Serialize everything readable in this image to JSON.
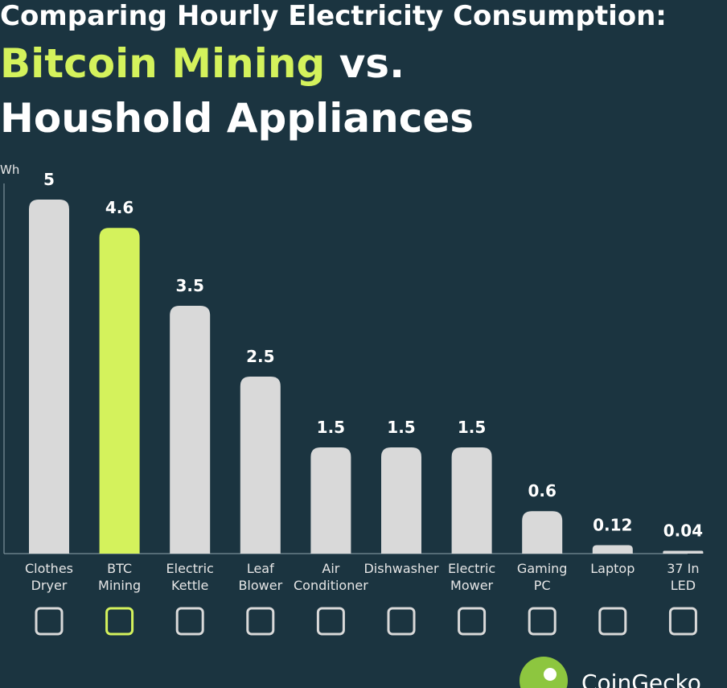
{
  "chart_data": {
    "type": "bar",
    "title": "Comparing Hourly Electricity Consumption:",
    "subtitle_highlight": "Bitcoin Mining",
    "subtitle_rest": "vs.",
    "subtitle_line2": "Houshold Appliances",
    "y_label": "Wh",
    "categories": [
      "Clothes\nDryer",
      "BTC\nMining",
      "Electric\nKettle",
      "Leaf\nBlower",
      "Air\nConditioner",
      "Dishwasher",
      "Electric\nMower",
      "Gaming\nPC",
      "Laptop",
      "37 In\nLED"
    ],
    "values": [
      5,
      4.6,
      3.5,
      2.5,
      1.5,
      1.5,
      1.5,
      0.6,
      0.12,
      0.04
    ],
    "colors": [
      "#d9d9d9",
      "#d4f25c",
      "#d9d9d9",
      "#d9d9d9",
      "#d9d9d9",
      "#d9d9d9",
      "#d9d9d9",
      "#d9d9d9",
      "#d9d9d9",
      "#d9d9d9"
    ],
    "ylim": [
      0,
      5
    ],
    "source_brand": "CoinGecko"
  }
}
